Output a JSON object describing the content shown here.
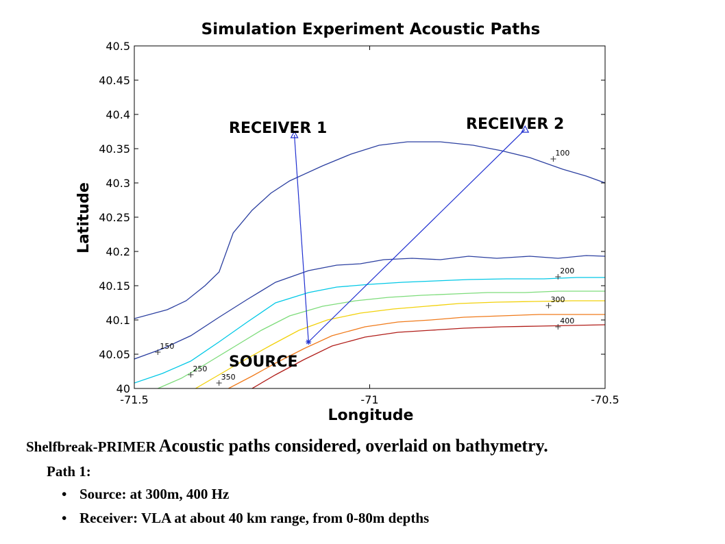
{
  "chart_data": {
    "type": "line",
    "title": "Simulation Experiment Acoustic Paths",
    "xlabel": "Longitude",
    "ylabel": "Latitude",
    "xlim": [
      -71.5,
      -70.5
    ],
    "ylim": [
      40,
      40.5
    ],
    "xticks": [
      -71.5,
      -71,
      -70.5
    ],
    "xtick_labels": [
      "-71.5",
      "-71",
      "-70.5"
    ],
    "yticks": [
      40,
      40.05,
      40.1,
      40.15,
      40.2,
      40.25,
      40.3,
      40.35,
      40.4,
      40.45,
      40.5
    ],
    "ytick_labels": [
      "40",
      "40.05",
      "40.1",
      "40.15",
      "40.2",
      "40.25",
      "40.3",
      "40.35",
      "40.4",
      "40.45",
      "40.5"
    ],
    "grid": false,
    "contours": [
      {
        "depth": "100",
        "color": "#2b3fa0",
        "x": [
          -71.5,
          -71.43,
          -71.39,
          -71.35,
          -71.32,
          -71.29,
          -71.25,
          -71.21,
          -71.17,
          -71.1,
          -71.04,
          -70.98,
          -70.92,
          -70.85,
          -70.78,
          -70.72,
          -70.66,
          -70.59,
          -70.54,
          -70.5
        ],
        "y": [
          40.102,
          40.115,
          40.128,
          40.15,
          40.17,
          40.227,
          40.26,
          40.285,
          40.303,
          40.325,
          40.342,
          40.355,
          40.36,
          40.36,
          40.355,
          40.347,
          40.337,
          40.32,
          40.31,
          40.3
        ]
      },
      {
        "depth": "150",
        "color": "#2b3fa0",
        "x": [
          -71.5,
          -71.44,
          -71.38,
          -71.32,
          -71.26,
          -71.2,
          -71.13,
          -71.07,
          -71.02,
          -70.97,
          -70.91,
          -70.85,
          -70.79,
          -70.73,
          -70.66,
          -70.6,
          -70.54,
          -70.5
        ],
        "y": [
          40.043,
          40.058,
          40.077,
          40.104,
          40.13,
          40.155,
          40.172,
          40.18,
          40.182,
          40.188,
          40.19,
          40.188,
          40.193,
          40.19,
          40.193,
          40.19,
          40.194,
          40.193
        ]
      },
      {
        "depth": "200",
        "color": "#00c8e6",
        "x": [
          -71.5,
          -71.44,
          -71.38,
          -71.32,
          -71.26,
          -71.2,
          -71.13,
          -71.07,
          -71.0,
          -70.93,
          -70.86,
          -70.79,
          -70.71,
          -70.63,
          -70.56,
          -70.5
        ],
        "y": [
          40.008,
          40.022,
          40.04,
          40.068,
          40.097,
          40.125,
          40.14,
          40.148,
          40.152,
          40.155,
          40.157,
          40.159,
          40.16,
          40.16,
          40.162,
          40.162
        ]
      },
      {
        "depth": "250",
        "color": "#7ddc7a",
        "x": [
          -71.45,
          -71.4,
          -71.35,
          -71.29,
          -71.23,
          -71.17,
          -71.1,
          -71.03,
          -70.96,
          -70.89,
          -70.82,
          -70.75,
          -70.67,
          -70.6,
          -70.5
        ],
        "y": [
          40.0,
          40.015,
          40.035,
          40.06,
          40.085,
          40.106,
          40.12,
          40.128,
          40.133,
          40.136,
          40.138,
          40.14,
          40.14,
          40.142,
          40.142
        ]
      },
      {
        "depth": "300",
        "color": "#f2d10a",
        "x": [
          -71.37,
          -71.32,
          -71.27,
          -71.21,
          -71.15,
          -71.09,
          -71.02,
          -70.95,
          -70.88,
          -70.81,
          -70.73,
          -70.65,
          -70.57,
          -70.5
        ],
        "y": [
          40.0,
          40.02,
          40.04,
          40.063,
          40.085,
          40.1,
          40.11,
          40.116,
          40.12,
          40.124,
          40.126,
          40.127,
          40.128,
          40.128
        ]
      },
      {
        "depth": "350",
        "color": "#f07a1a",
        "x": [
          -71.3,
          -71.25,
          -71.2,
          -71.14,
          -71.08,
          -71.01,
          -70.94,
          -70.87,
          -70.8,
          -70.72,
          -70.64,
          -70.57,
          -70.5
        ],
        "y": [
          40.0,
          40.018,
          40.037,
          40.058,
          40.077,
          40.09,
          40.097,
          40.1,
          40.104,
          40.106,
          40.108,
          40.108,
          40.108
        ]
      },
      {
        "depth": "400",
        "color": "#b01c18",
        "x": [
          -71.25,
          -71.2,
          -71.14,
          -71.08,
          -71.01,
          -70.94,
          -70.87,
          -70.8,
          -70.72,
          -70.64,
          -70.57,
          -70.5
        ],
        "y": [
          40.0,
          40.02,
          40.042,
          40.062,
          40.075,
          40.082,
          40.085,
          40.088,
          40.09,
          40.091,
          40.092,
          40.093
        ]
      }
    ],
    "depth_labels": [
      {
        "text": "100",
        "x": -70.61,
        "y": 40.335
      },
      {
        "text": "150",
        "x": -71.45,
        "y": 40.053
      },
      {
        "text": "200",
        "x": -70.6,
        "y": 40.163
      },
      {
        "text": "250",
        "x": -71.38,
        "y": 40.02
      },
      {
        "text": "300",
        "x": -70.62,
        "y": 40.121
      },
      {
        "text": "350",
        "x": -71.32,
        "y": 40.008
      },
      {
        "text": "400",
        "x": -70.6,
        "y": 40.09
      }
    ],
    "paths": [
      {
        "from": "SOURCE",
        "to": "RECEIVER 1",
        "x": [
          -71.13,
          -71.16
        ],
        "y": [
          40.068,
          40.37
        ]
      },
      {
        "from": "SOURCE",
        "to": "RECEIVER 2",
        "x": [
          -71.13,
          -70.67
        ],
        "y": [
          40.068,
          40.378
        ]
      }
    ],
    "points": [
      {
        "name": "SOURCE",
        "x": -71.13,
        "y": 40.068,
        "marker": "star"
      },
      {
        "name": "RECEIVER 1",
        "x": -71.16,
        "y": 40.37,
        "marker": "triangle"
      },
      {
        "name": "RECEIVER 2",
        "x": -70.67,
        "y": 40.378,
        "marker": "triangle"
      }
    ],
    "annotations": [
      "RECEIVER 1",
      "RECEIVER 2",
      "SOURCE"
    ],
    "path_color": "#1f2fd0"
  },
  "caption": {
    "prefix": "Shelfbreak-PRIMER",
    "main": "Acoustic paths considered, overlaid on bathymetry.",
    "path_heading": "Path 1:",
    "bullet_char": "•",
    "bullets": [
      "Source: at 300m, 400 Hz",
      "Receiver: VLA at about 40 km range, from 0-80m depths"
    ]
  }
}
